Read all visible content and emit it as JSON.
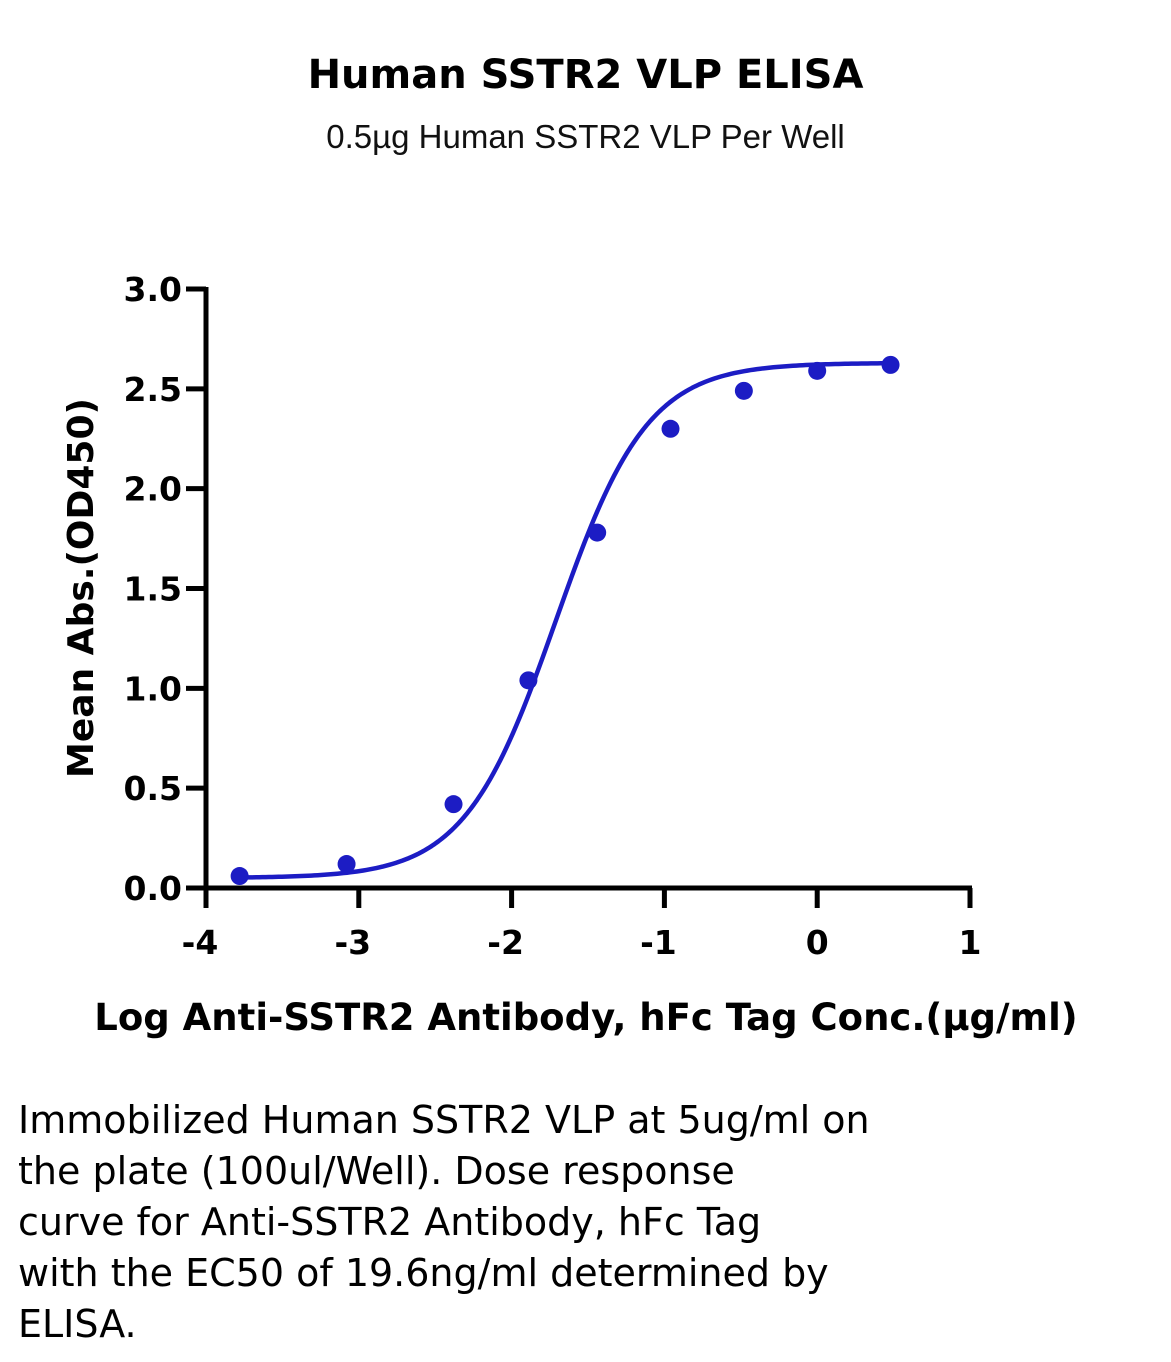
{
  "chart_data": {
    "type": "line",
    "title": "Human SSTR2 VLP ELISA",
    "subtitle": "0.5µg Human SSTR2 VLP Per Well",
    "xlabel": "Log Anti-SSTR2 Antibody, hFc Tag Conc.(µg/ml)",
    "ylabel": "Mean Abs.(OD450)",
    "xlim": [
      -4,
      1
    ],
    "ylim": [
      0,
      3.0
    ],
    "x_ticks": [
      "-4",
      "-3",
      "-2",
      "-1",
      "0",
      "1"
    ],
    "y_ticks": [
      "0.0",
      "0.5",
      "1.0",
      "1.5",
      "2.0",
      "2.5",
      "3.0"
    ],
    "grid": false,
    "series": [
      {
        "color": "#1c1cc4",
        "x": [
          -3.78,
          -3.08,
          -2.38,
          -1.89,
          -1.44,
          -0.96,
          -0.48,
          0.0,
          0.48
        ],
        "y": [
          0.06,
          0.12,
          0.42,
          1.04,
          1.78,
          2.3,
          2.49,
          2.59,
          2.62
        ]
      }
    ],
    "fit_curve": {
      "bottom": 0.05,
      "top": 2.63,
      "log_ec50": -1.71,
      "hill": 1.45
    }
  },
  "caption": {
    "lines": [
      "Immobilized Human SSTR2 VLP at 5ug/ml on",
      "the plate (100ul/Well). Dose response",
      "curve for Anti-SSTR2 Antibody, hFc Tag",
      "with the EC50 of 19.6ng/ml determined by",
      "ELISA."
    ]
  }
}
